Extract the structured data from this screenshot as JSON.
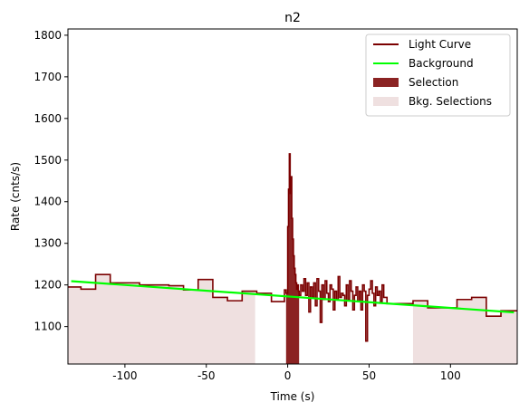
{
  "chart_data": {
    "type": "line",
    "title": "n2",
    "xlabel": "Time (s)",
    "ylabel": "Rate (cnts/s)",
    "xlim": [
      -135,
      141
    ],
    "ylim": [
      1010,
      1815
    ],
    "xticks": [
      -100,
      -50,
      0,
      50,
      100
    ],
    "yticks": [
      1100,
      1200,
      1300,
      1400,
      1500,
      1600,
      1700,
      1800
    ],
    "grid": false,
    "legend_position": "top-right",
    "colors": {
      "light_curve": "#7b0000",
      "background": "#00ff00",
      "selection": "#8b2323",
      "bkg_selection": "#efe0e0"
    },
    "legend": [
      {
        "label": "Light Curve",
        "kind": "line",
        "color": "#7b0000"
      },
      {
        "label": "Background",
        "kind": "line",
        "color": "#00ff00"
      },
      {
        "label": "Selection",
        "kind": "patch",
        "color": "#8b2323"
      },
      {
        "label": "Bkg. Selections",
        "kind": "patch",
        "color": "#efe0e0"
      }
    ],
    "selection": {
      "x_start": -1,
      "x_end": 7
    },
    "bkg_selections": [
      {
        "x_start": -135,
        "x_end": -20
      },
      {
        "x_start": 77,
        "x_end": 141
      }
    ],
    "background_fit": {
      "x": [
        -133,
        139
      ],
      "y": [
        1209,
        1134
      ]
    },
    "light_curve": {
      "bins": [
        [
          -135,
          -127,
          1195
        ],
        [
          -127,
          -118,
          1190
        ],
        [
          -118,
          -109,
          1225
        ],
        [
          -109,
          -100,
          1205
        ],
        [
          -100,
          -91,
          1205
        ],
        [
          -91,
          -82,
          1200
        ],
        [
          -82,
          -73,
          1200
        ],
        [
          -73,
          -64,
          1198
        ],
        [
          -64,
          -55,
          1188
        ],
        [
          -55,
          -46,
          1213
        ],
        [
          -46,
          -37,
          1170
        ],
        [
          -37,
          -28,
          1162
        ],
        [
          -28,
          -19,
          1185
        ],
        [
          -19,
          -10,
          1180
        ],
        [
          -10,
          -2,
          1160
        ],
        [
          -2,
          -1,
          1188
        ],
        [
          -1,
          0,
          1180
        ],
        [
          0,
          0.5,
          1340
        ],
        [
          0.5,
          1,
          1430
        ],
        [
          1,
          1.5,
          1515
        ],
        [
          1.5,
          2,
          1420
        ],
        [
          2,
          2.5,
          1460
        ],
        [
          2.5,
          3,
          1360
        ],
        [
          3,
          3.5,
          1310
        ],
        [
          3.5,
          4,
          1270
        ],
        [
          4,
          4.5,
          1240
        ],
        [
          4.5,
          5,
          1225
        ],
        [
          5,
          5.5,
          1205
        ],
        [
          5.5,
          6,
          1190
        ],
        [
          6,
          6.5,
          1200
        ],
        [
          6.5,
          7,
          1185
        ],
        [
          7,
          8,
          1175
        ],
        [
          8,
          9,
          1200
        ],
        [
          9,
          10,
          1185
        ],
        [
          10,
          11,
          1215
        ],
        [
          11,
          12,
          1175
        ],
        [
          12,
          13,
          1205
        ],
        [
          13,
          14,
          1135
        ],
        [
          14,
          15,
          1195
        ],
        [
          15,
          16,
          1170
        ],
        [
          16,
          17,
          1205
        ],
        [
          17,
          18,
          1150
        ],
        [
          18,
          19,
          1215
        ],
        [
          19,
          20,
          1185
        ],
        [
          20,
          21,
          1110
        ],
        [
          21,
          22,
          1200
        ],
        [
          22,
          23,
          1165
        ],
        [
          23,
          24,
          1210
        ],
        [
          24,
          25,
          1180
        ],
        [
          25,
          26,
          1160
        ],
        [
          26,
          27,
          1200
        ],
        [
          27,
          28,
          1190
        ],
        [
          28,
          29,
          1140
        ],
        [
          29,
          30,
          1185
        ],
        [
          30,
          31,
          1165
        ],
        [
          31,
          32,
          1220
        ],
        [
          32,
          33,
          1170
        ],
        [
          33,
          34,
          1180
        ],
        [
          34,
          35,
          1175
        ],
        [
          35,
          36,
          1150
        ],
        [
          36,
          37,
          1200
        ],
        [
          37,
          38,
          1165
        ],
        [
          38,
          39,
          1210
        ],
        [
          39,
          40,
          1185
        ],
        [
          40,
          41,
          1140
        ],
        [
          41,
          42,
          1175
        ],
        [
          42,
          43,
          1195
        ],
        [
          43,
          44,
          1160
        ],
        [
          44,
          45,
          1185
        ],
        [
          45,
          46,
          1140
        ],
        [
          46,
          47,
          1200
        ],
        [
          47,
          48,
          1185
        ],
        [
          48,
          49,
          1065
        ],
        [
          49,
          50,
          1175
        ],
        [
          50,
          51,
          1190
        ],
        [
          51,
          52,
          1210
        ],
        [
          52,
          53,
          1180
        ],
        [
          53,
          54,
          1150
        ],
        [
          54,
          55,
          1195
        ],
        [
          55,
          56,
          1175
        ],
        [
          56,
          57,
          1185
        ],
        [
          57,
          58,
          1160
        ],
        [
          58,
          59,
          1200
        ],
        [
          59,
          60,
          1170
        ],
        [
          60,
          61,
          1170
        ],
        [
          61,
          69,
          1155
        ],
        [
          69,
          77,
          1155
        ],
        [
          77,
          86,
          1162
        ],
        [
          86,
          95,
          1145
        ],
        [
          95,
          104,
          1145
        ],
        [
          104,
          113,
          1165
        ],
        [
          113,
          122,
          1170
        ],
        [
          122,
          131,
          1125
        ],
        [
          131,
          141,
          1138
        ]
      ]
    }
  }
}
